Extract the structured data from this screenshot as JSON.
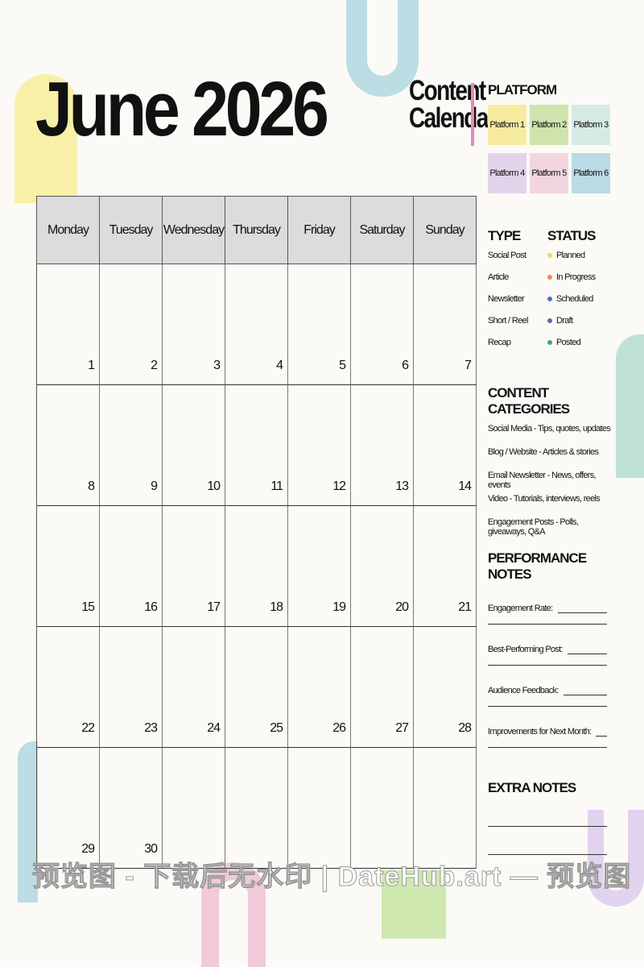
{
  "header": {
    "title": "June 2026",
    "subtitle_line1": "Content",
    "subtitle_line2": "Calendar"
  },
  "calendar": {
    "days": [
      "Monday",
      "Tuesday",
      "Wednesday",
      "Thursday",
      "Friday",
      "Saturday",
      "Sunday"
    ],
    "dates": [
      "1",
      "2",
      "3",
      "4",
      "5",
      "6",
      "7",
      "8",
      "9",
      "10",
      "11",
      "12",
      "13",
      "14",
      "15",
      "16",
      "17",
      "18",
      "19",
      "20",
      "21",
      "22",
      "23",
      "24",
      "25",
      "26",
      "27",
      "28",
      "29",
      "30",
      "",
      "",
      "",
      "",
      ""
    ]
  },
  "platform": {
    "heading": "PLATFORM",
    "items": [
      {
        "label": "Platform 1",
        "color": "#f7eba0"
      },
      {
        "label": "Platform 2",
        "color": "#cfe5ad"
      },
      {
        "label": "Platform 3",
        "color": "#d6ebe6"
      },
      {
        "label": "Platform 4",
        "color": "#e3d3ea"
      },
      {
        "label": "Platform 5",
        "color": "#f1d6df"
      },
      {
        "label": "Platform 6",
        "color": "#b9dbe3"
      }
    ]
  },
  "type": {
    "heading": "TYPE",
    "items": [
      "Social Post",
      "Article",
      "Newsletter",
      "Short / Reel",
      "Recap"
    ]
  },
  "status": {
    "heading": "STATUS",
    "items": [
      {
        "label": "Planned",
        "color": "#f3d95a"
      },
      {
        "label": "In Progress",
        "color": "#ef8a4a"
      },
      {
        "label": "Scheduled",
        "color": "#4d72c4"
      },
      {
        "label": "Draft",
        "color": "#6f5fb5"
      },
      {
        "label": "Posted",
        "color": "#3fae60"
      }
    ]
  },
  "categories": {
    "heading": "CONTENT CATEGORIES",
    "items": [
      "Social Media - Tips, quotes, updates",
      "Blog / Website - Articles & stories",
      "Email Newsletter - News, offers, events",
      "Video - Tutorials, interviews, reels",
      "Engagement Posts - Polls, giveaways, Q&A"
    ]
  },
  "performance": {
    "heading": "PERFORMANCE NOTES",
    "items": [
      "Engagement Rate:",
      "Best-Performing Post:",
      "Audience Feedback:",
      "Improvements for Next Month:"
    ]
  },
  "extra": {
    "heading": "EXTRA NOTES"
  },
  "watermark": "预览图 - 下载后无水印 | DateHub.art — 预览图"
}
